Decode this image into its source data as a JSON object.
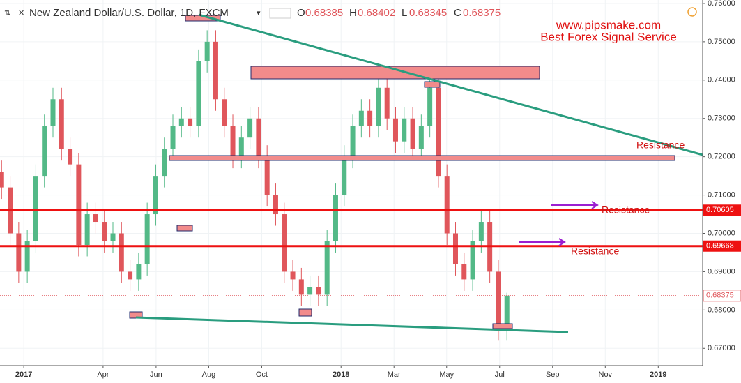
{
  "chart_data": {
    "type": "candlestick",
    "header": {
      "symbol": "New Zealand Dollar/U.S. Dollar, 1D, FXCM",
      "o_label": "O",
      "o": "0.68385",
      "h_label": "H",
      "h": "0.68402",
      "l_label": "L",
      "l": "0.68345",
      "c_label": "C",
      "c": "0.68375"
    },
    "watermark": [
      "www.pipsmake.com",
      "Best Forex Signal Service"
    ],
    "annotations": [
      "Resistance",
      "Resistance",
      "Resistance"
    ],
    "levels": [
      0.70605,
      0.69668
    ],
    "last_price": 0.68375,
    "up_color": "#53b987",
    "down_color": "#e0565b",
    "x": [
      2016.93,
      2016.957,
      2016.984,
      2017.011,
      2017.038,
      2017.065,
      2017.092,
      2017.119,
      2017.146,
      2017.173,
      2017.2,
      2017.227,
      2017.254,
      2017.281,
      2017.308,
      2017.335,
      2017.362,
      2017.389,
      2017.416,
      2017.443,
      2017.47,
      2017.497,
      2017.524,
      2017.551,
      2017.578,
      2017.605,
      2017.632,
      2017.659,
      2017.686,
      2017.713,
      2017.74,
      2017.767,
      2017.794,
      2017.821,
      2017.848,
      2017.875,
      2017.902,
      2017.929,
      2017.956,
      2017.983,
      2018.01,
      2018.037,
      2018.064,
      2018.091,
      2018.118,
      2018.145,
      2018.172,
      2018.199,
      2018.226,
      2018.253,
      2018.28,
      2018.307,
      2018.334,
      2018.361,
      2018.388,
      2018.415,
      2018.442,
      2018.469,
      2018.496,
      2018.523
    ],
    "open": [
      0.716,
      0.712,
      0.7,
      0.69,
      0.698,
      0.715,
      0.728,
      0.735,
      0.722,
      0.718,
      0.697,
      0.705,
      0.703,
      0.698,
      0.7,
      0.69,
      0.688,
      0.692,
      0.705,
      0.715,
      0.722,
      0.728,
      0.73,
      0.728,
      0.745,
      0.75,
      0.735,
      0.728,
      0.72,
      0.725,
      0.73,
      0.72,
      0.71,
      0.705,
      0.69,
      0.688,
      0.684,
      0.686,
      0.684,
      0.698,
      0.71,
      0.72,
      0.728,
      0.732,
      0.728,
      0.738,
      0.73,
      0.724,
      0.73,
      0.722,
      0.728,
      0.738,
      0.715,
      0.7,
      0.692,
      0.688,
      0.698,
      0.703,
      0.69,
      0.675
    ],
    "high": [
      0.719,
      0.715,
      0.703,
      0.701,
      0.718,
      0.731,
      0.738,
      0.738,
      0.725,
      0.721,
      0.708,
      0.708,
      0.706,
      0.703,
      0.703,
      0.693,
      0.695,
      0.708,
      0.718,
      0.725,
      0.731,
      0.733,
      0.733,
      0.748,
      0.753,
      0.753,
      0.738,
      0.731,
      0.728,
      0.733,
      0.733,
      0.723,
      0.713,
      0.708,
      0.693,
      0.691,
      0.689,
      0.689,
      0.701,
      0.713,
      0.723,
      0.731,
      0.735,
      0.735,
      0.741,
      0.741,
      0.733,
      0.733,
      0.733,
      0.731,
      0.741,
      0.741,
      0.718,
      0.703,
      0.695,
      0.701,
      0.706,
      0.706,
      0.693,
      0.6845
    ],
    "low": [
      0.709,
      0.697,
      0.687,
      0.687,
      0.695,
      0.712,
      0.725,
      0.719,
      0.715,
      0.694,
      0.694,
      0.7,
      0.695,
      0.695,
      0.687,
      0.685,
      0.685,
      0.689,
      0.702,
      0.712,
      0.719,
      0.725,
      0.725,
      0.725,
      0.742,
      0.732,
      0.725,
      0.717,
      0.717,
      0.722,
      0.717,
      0.707,
      0.702,
      0.687,
      0.685,
      0.681,
      0.681,
      0.681,
      0.681,
      0.695,
      0.707,
      0.717,
      0.725,
      0.725,
      0.725,
      0.727,
      0.721,
      0.721,
      0.719,
      0.719,
      0.725,
      0.712,
      0.697,
      0.689,
      0.685,
      0.685,
      0.695,
      0.687,
      0.672,
      0.672
    ],
    "close": [
      0.712,
      0.7,
      0.69,
      0.698,
      0.715,
      0.728,
      0.735,
      0.722,
      0.718,
      0.697,
      0.705,
      0.703,
      0.698,
      0.7,
      0.69,
      0.688,
      0.692,
      0.705,
      0.715,
      0.722,
      0.728,
      0.73,
      0.728,
      0.745,
      0.75,
      0.735,
      0.728,
      0.72,
      0.725,
      0.73,
      0.72,
      0.71,
      0.705,
      0.69,
      0.688,
      0.684,
      0.686,
      0.684,
      0.698,
      0.71,
      0.72,
      0.728,
      0.732,
      0.728,
      0.738,
      0.73,
      0.724,
      0.73,
      0.722,
      0.728,
      0.738,
      0.715,
      0.7,
      0.692,
      0.688,
      0.698,
      0.703,
      0.69,
      0.675,
      0.68375
    ],
    "ylim": [
      0.6655,
      0.7609
    ],
    "yticks": [
      {
        "value": 0.67,
        "label": "0.67000"
      },
      {
        "value": 0.68,
        "label": "0.68000"
      },
      {
        "value": 0.69,
        "label": "0.69000"
      },
      {
        "value": 0.7,
        "label": "0.70000"
      },
      {
        "value": 0.71,
        "label": "0.71000"
      },
      {
        "value": 0.72,
        "label": "0.72000"
      },
      {
        "value": 0.73,
        "label": "0.73000"
      },
      {
        "value": 0.74,
        "label": "0.74000"
      },
      {
        "value": 0.75,
        "label": "0.75000"
      },
      {
        "value": 0.76,
        "label": "0.76000"
      }
    ],
    "xlim": [
      2016.925,
      2019.14
    ],
    "xticks": [
      2017,
      {
        "value": 2017.25,
        "label": "Apr"
      },
      {
        "value": 2017.417,
        "label": "Jun"
      },
      {
        "value": 2017.583,
        "label": "Aug"
      },
      {
        "value": 2017.75,
        "label": "Oct"
      },
      2018,
      {
        "value": 2018.167,
        "label": "Mar"
      },
      {
        "value": 2018.333,
        "label": "May"
      },
      {
        "value": 2018.5,
        "label": "Jul"
      },
      {
        "value": 2018.667,
        "label": "Sep"
      },
      {
        "value": 2018.833,
        "label": "Nov"
      },
      2019
    ]
  }
}
